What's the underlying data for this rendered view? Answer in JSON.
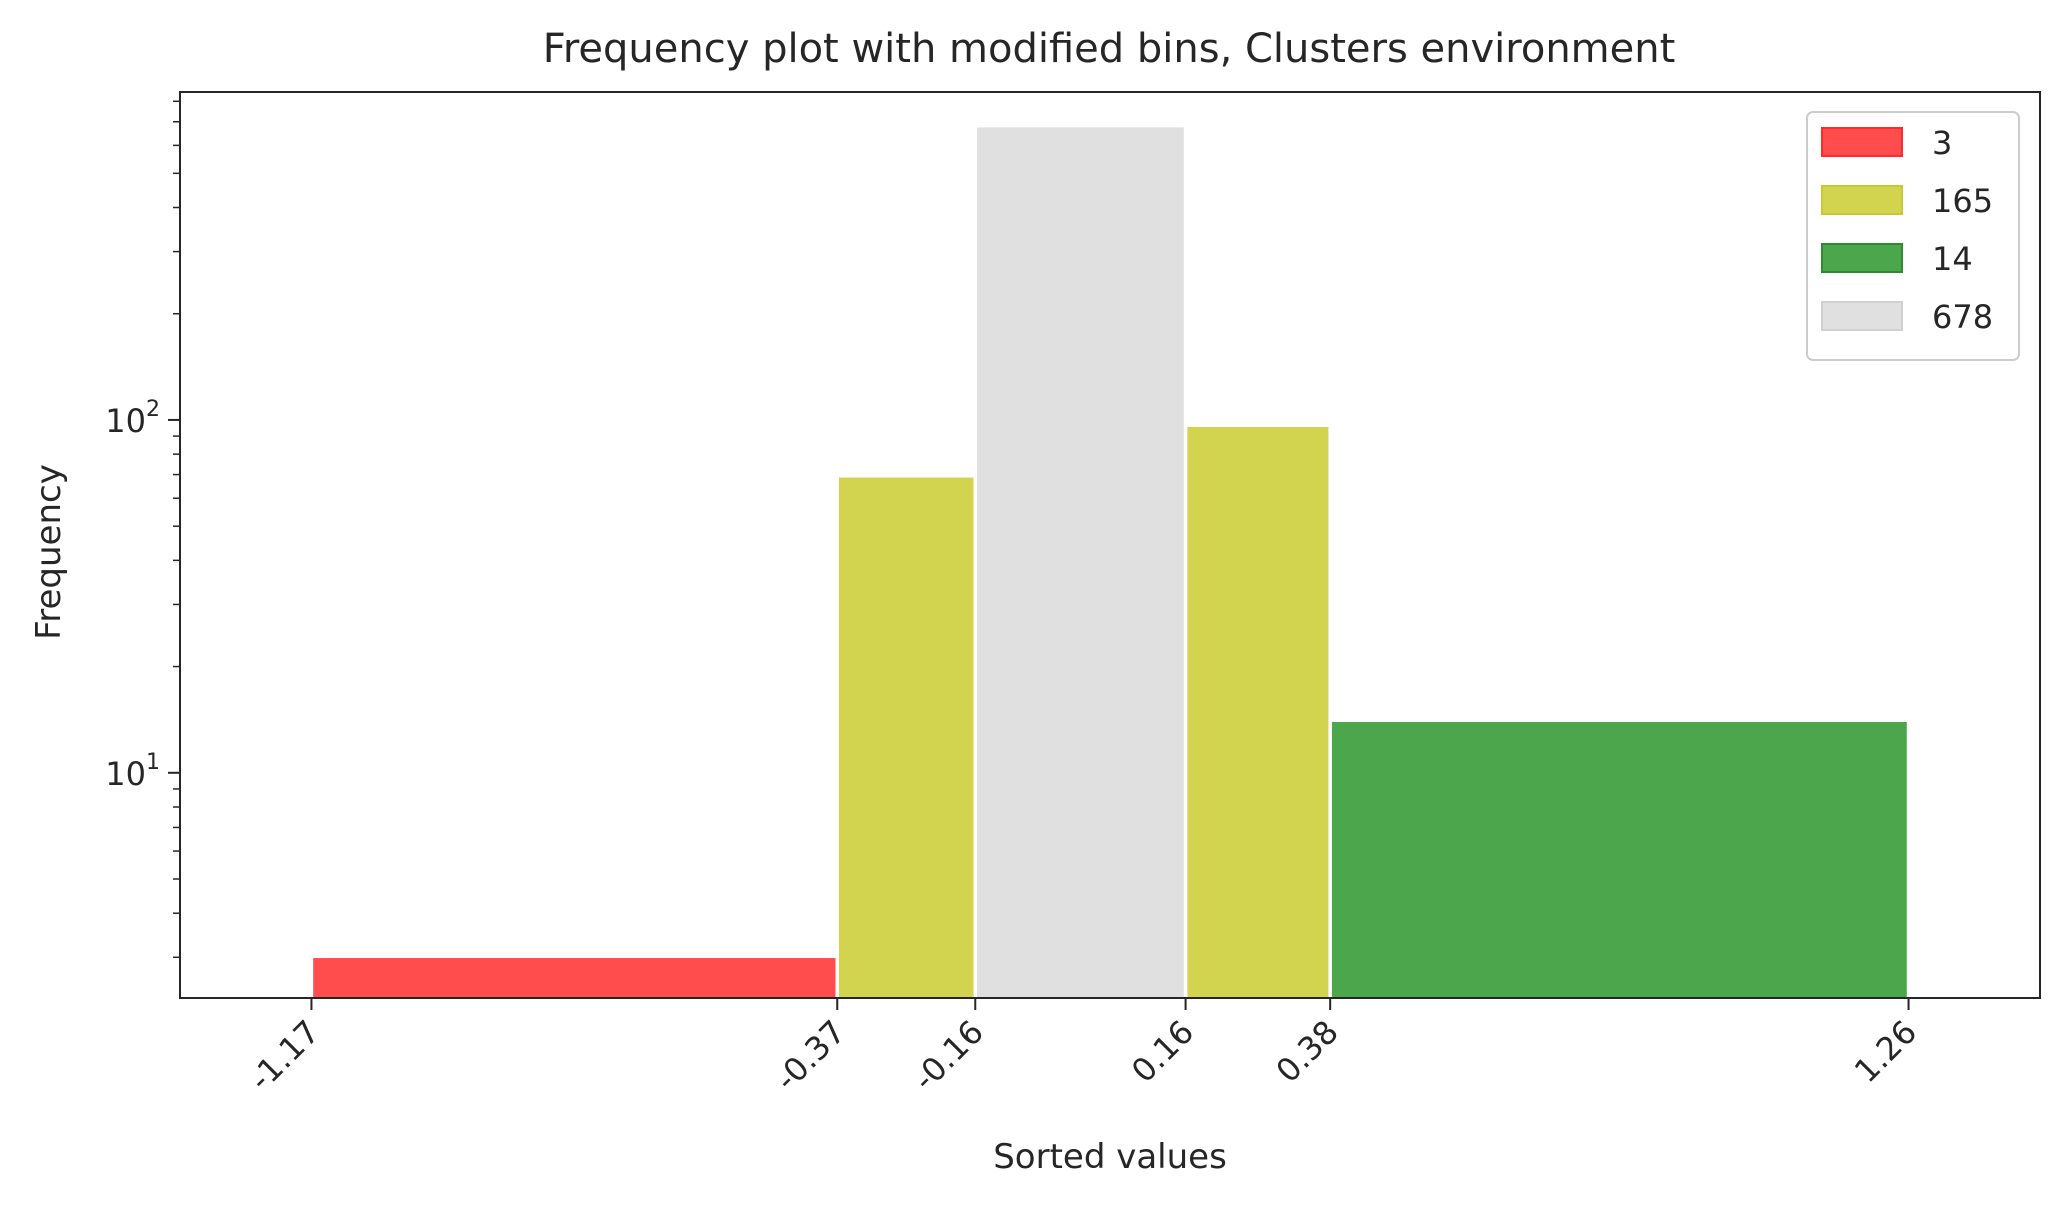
{
  "chart_data": {
    "type": "bar",
    "title": "Frequency plot with modified bins, Clusters environment",
    "xlabel": "Sorted values",
    "ylabel": "Frequency",
    "y_scale": "log",
    "ylim": [
      2.3,
      850
    ],
    "xlim": [
      -1.37,
      1.46
    ],
    "x_ticks": [
      -1.17,
      -0.37,
      -0.16,
      0.16,
      0.38,
      1.26
    ],
    "x_tick_labels": [
      "-1.17",
      "-0.37",
      "-0.16",
      "0.16",
      "0.38",
      "1.26"
    ],
    "y_ticks": [
      {
        "value": 10,
        "base": "10",
        "exponent": "1"
      },
      {
        "value": 100,
        "base": "10",
        "exponent": "2"
      }
    ],
    "grid": false,
    "legend_position": "top-right",
    "series": [
      {
        "name": "3",
        "color": "#ff4d4d",
        "edge": "#ff2a2a",
        "bins": [
          {
            "x0": -1.17,
            "x1": -0.37,
            "value": 3
          }
        ]
      },
      {
        "name": "165",
        "color": "#d2d44f",
        "edge": "#c8c830",
        "bins": [
          {
            "x0": -0.37,
            "x1": -0.16,
            "value": 69
          },
          {
            "x0": 0.16,
            "x1": 0.38,
            "value": 96
          }
        ]
      },
      {
        "name": "14",
        "color": "#4ca64c",
        "edge": "#2e8b2e",
        "bins": [
          {
            "x0": 0.38,
            "x1": 1.26,
            "value": 14
          }
        ]
      },
      {
        "name": "678",
        "color": "#e0e0e0",
        "edge": "#d0d0d0",
        "bins": [
          {
            "x0": -0.16,
            "x1": 0.16,
            "value": 678
          }
        ]
      }
    ]
  }
}
